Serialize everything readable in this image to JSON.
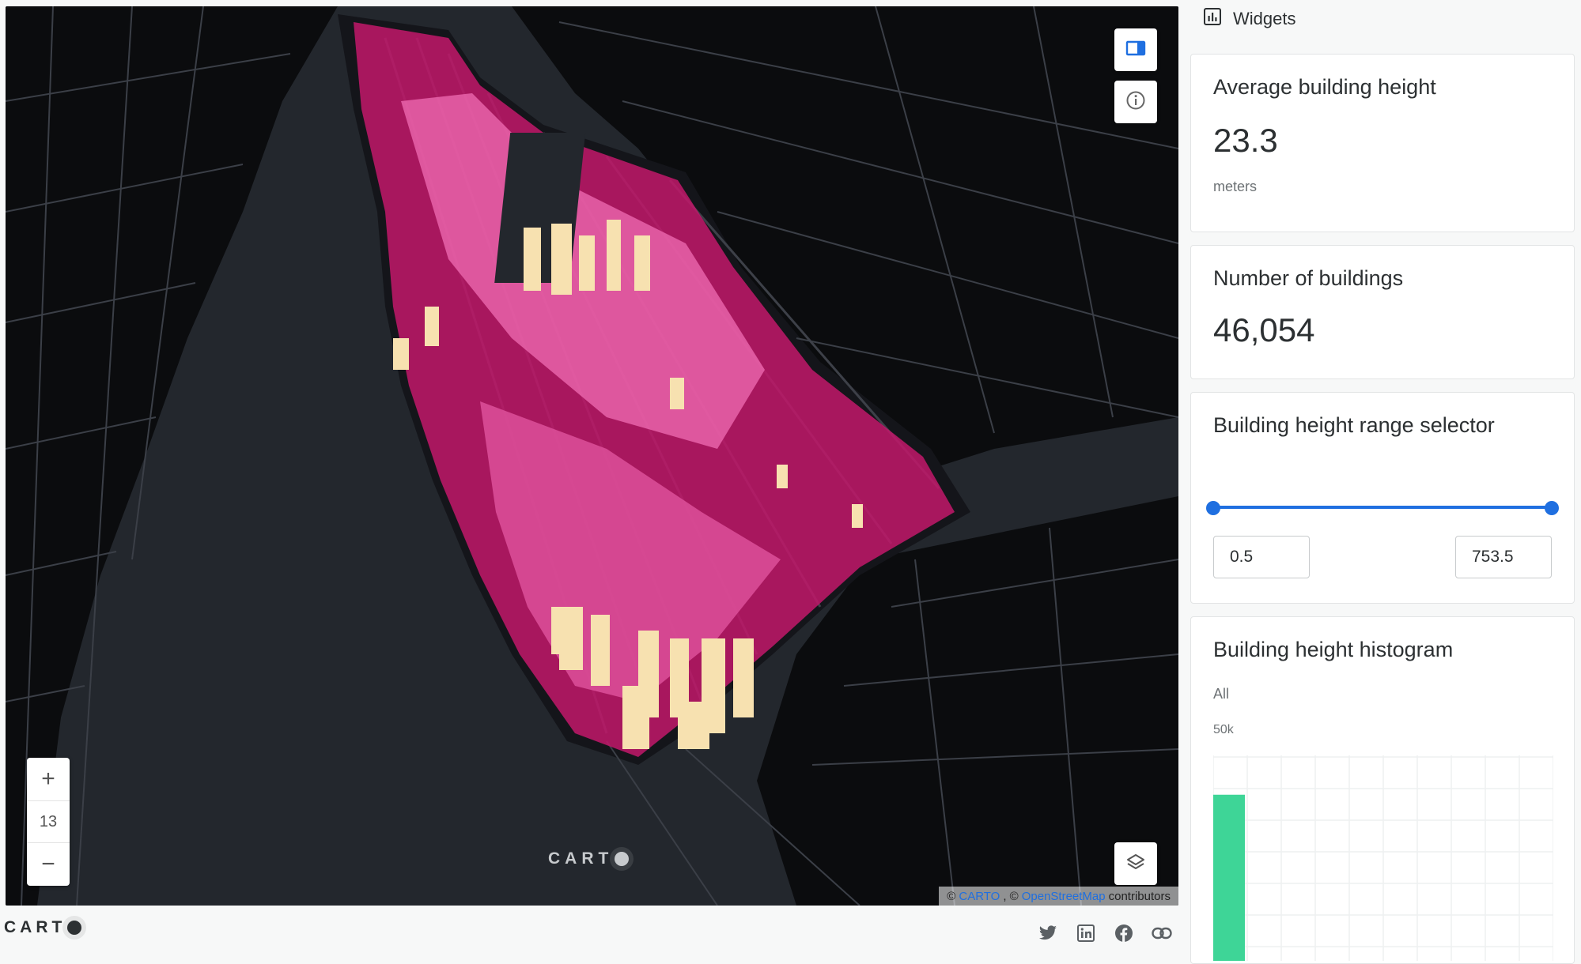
{
  "map": {
    "zoom_in": "+",
    "zoom_level": "13",
    "zoom_out": "−",
    "logo_text": "CART",
    "attribution": {
      "prefix": "©",
      "carto": "CARTO",
      "sep": ", ©",
      "osm": "OpenStreetMap",
      "suffix": "contributors"
    },
    "colors": {
      "water": "#23272d",
      "land": "#0b0c0e",
      "roads": "#3b3f47",
      "building_low": "#c2186b",
      "building_mid": "#f06eb4",
      "building_high": "#f7e1b0"
    }
  },
  "footer": {
    "logo_text": "CART",
    "social_icons": [
      "twitter-icon",
      "linkedin-icon",
      "facebook-icon",
      "link-icon"
    ]
  },
  "sidebar": {
    "title": "Widgets",
    "widgets": {
      "avg_height": {
        "title": "Average building height",
        "value": "23.3",
        "unit": "meters"
      },
      "count": {
        "title": "Number of buildings",
        "value": "46,054"
      },
      "range": {
        "title": "Building height range selector",
        "min": "0.5",
        "max": "753.5",
        "accent": "#1f6fe0"
      },
      "histogram": {
        "title": "Building height histogram",
        "filter_label": "All",
        "y_tick": "50k",
        "bar_color": "#3ed597"
      }
    }
  },
  "chart_data": {
    "type": "bar",
    "title": "Building height histogram",
    "y_ticks": [
      "50k"
    ],
    "ylim": [
      0,
      50000
    ],
    "values": [
      44000
    ]
  }
}
